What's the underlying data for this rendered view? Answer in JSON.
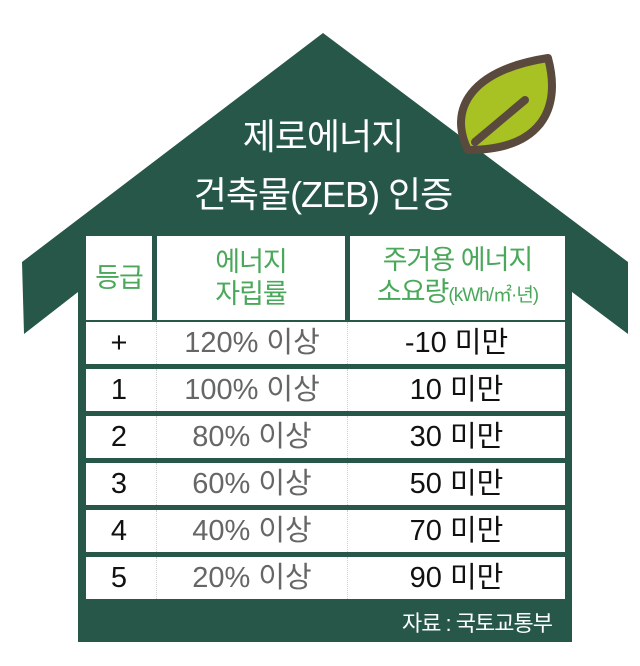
{
  "title": {
    "line1": "제로에너지",
    "line2": "건축물(ZEB) 인증"
  },
  "table": {
    "headers": {
      "grade": "등급",
      "self_sufficiency_line1": "에너지",
      "self_sufficiency_line2": "자립률",
      "consumption_line1": "주거용 에너지",
      "consumption_line2": "소요량",
      "consumption_unit": "(kWh/㎡·년)"
    },
    "rows": [
      {
        "grade": "+",
        "self_sufficiency": "120% 이상",
        "consumption": "-10 미만"
      },
      {
        "grade": "1",
        "self_sufficiency": "100% 이상",
        "consumption": "10 미만"
      },
      {
        "grade": "2",
        "self_sufficiency": "80% 이상",
        "consumption": "30 미만"
      },
      {
        "grade": "3",
        "self_sufficiency": "60% 이상",
        "consumption": "50 미만"
      },
      {
        "grade": "4",
        "self_sufficiency": "40% 이상",
        "consumption": "70 미만"
      },
      {
        "grade": "5",
        "self_sufficiency": "20% 이상",
        "consumption": "90 미만"
      }
    ]
  },
  "source": "자료 : 국토교통부",
  "colors": {
    "house": "#265748",
    "header_text": "#4aa85a",
    "leaf": "#a8c123",
    "leaf_outline": "#5a4a3e"
  }
}
